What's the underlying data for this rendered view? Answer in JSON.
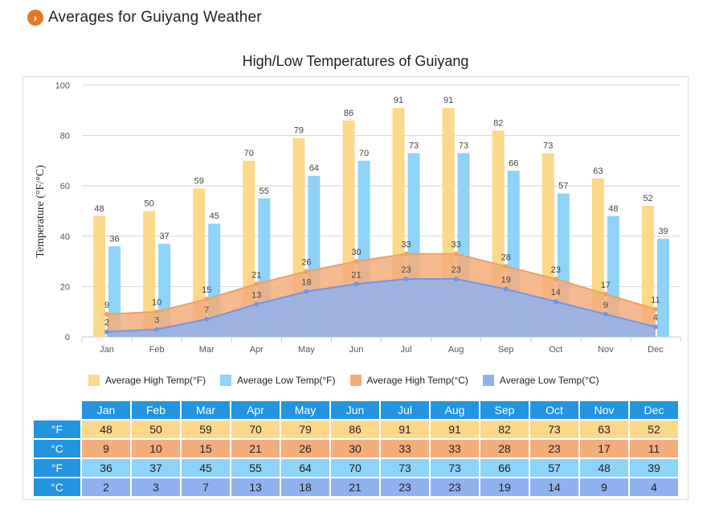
{
  "page": {
    "heading": "Averages for Guiyang Weather",
    "badge_glyph": "›"
  },
  "chart_data": {
    "type": "bar",
    "title": "High/Low Temperatures of Guiyang",
    "ylabel": "Temperature (°F/°C)",
    "xlabel": "",
    "ylim": [
      0,
      100
    ],
    "yticks": [
      0,
      20,
      40,
      60,
      80,
      100
    ],
    "categories": [
      "Jan",
      "Feb",
      "Mar",
      "Apr",
      "May",
      "Jun",
      "Jul",
      "Aug",
      "Sep",
      "Oct",
      "Nov",
      "Dec"
    ],
    "grid": true,
    "legend_position": "bottom",
    "series": [
      {
        "name": "Average High Temp(°F)",
        "kind": "bar",
        "color": "#fcd88a",
        "values": [
          48,
          50,
          59,
          70,
          79,
          86,
          91,
          91,
          82,
          73,
          63,
          52
        ]
      },
      {
        "name": "Average Low Temp(°F)",
        "kind": "bar",
        "color": "#8fd3f8",
        "values": [
          36,
          37,
          45,
          55,
          64,
          70,
          73,
          73,
          66,
          57,
          48,
          39
        ]
      },
      {
        "name": "Average High Temp(°C)",
        "kind": "area",
        "color": "#f3ae7c",
        "values": [
          9,
          10,
          15,
          21,
          26,
          30,
          33,
          33,
          28,
          23,
          17,
          11
        ]
      },
      {
        "name": "Average Low Temp(°C)",
        "kind": "area",
        "color": "#8fb2ef",
        "values": [
          2,
          3,
          7,
          13,
          18,
          21,
          23,
          23,
          19,
          14,
          9,
          4
        ]
      }
    ]
  },
  "table": {
    "months": [
      "Jan",
      "Feb",
      "Mar",
      "Apr",
      "May",
      "Jun",
      "Jul",
      "Aug",
      "Sep",
      "Oct",
      "Nov",
      "Dec"
    ],
    "rows": [
      {
        "label": "°F",
        "values": [
          48,
          50,
          59,
          70,
          79,
          86,
          91,
          91,
          82,
          73,
          63,
          52
        ]
      },
      {
        "label": "°C",
        "values": [
          9,
          10,
          15,
          21,
          26,
          30,
          33,
          33,
          28,
          23,
          17,
          11
        ]
      },
      {
        "label": "°F",
        "values": [
          36,
          37,
          45,
          55,
          64,
          70,
          73,
          73,
          66,
          57,
          48,
          39
        ]
      },
      {
        "label": "°C",
        "values": [
          2,
          3,
          7,
          13,
          18,
          21,
          23,
          23,
          19,
          14,
          9,
          4
        ]
      }
    ]
  }
}
